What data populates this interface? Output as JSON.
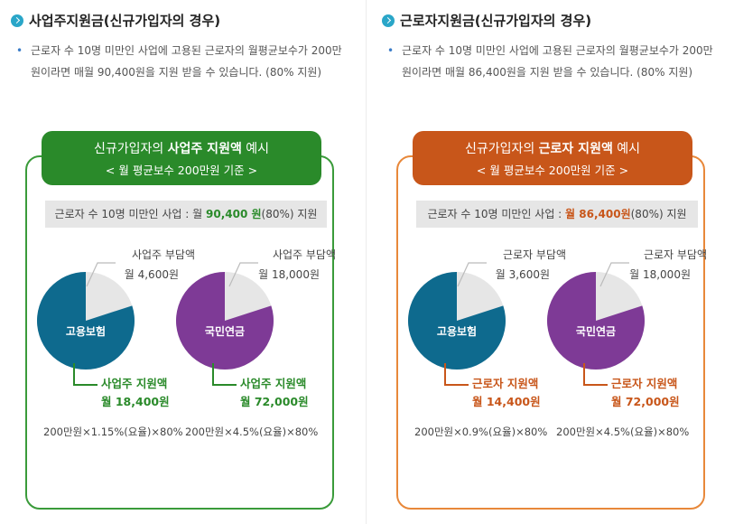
{
  "left": {
    "title": "사업주지원금(신규가입자의 경우)",
    "desc": "근로자 수 10명 미만인 사업에 고용된 근로자의 월평균보수가 200만원이라면 매월 90,400원을 지원 받을 수 있습니다. (80% 지원)",
    "badge_line1_pre": "신규가입자의 ",
    "badge_line1_bold": "사업주 지원액",
    "badge_line1_post": " 예시",
    "badge_line2": "< 월 평균보수 200만원 기준 >",
    "summary_pre": "근로자 수 10명 미만인 사업 : 월 ",
    "summary_amount": "90,400 원",
    "summary_post": "(80%) 지원",
    "pie1": {
      "name": "고용보험",
      "share_label": "사업주 부담액",
      "share_value": "월 4,600원",
      "support_label": "사업주 지원액",
      "support_value": "월 18,400원",
      "formula": "200만원×1.15%(요율)×80%",
      "support_fraction": 0.8
    },
    "pie2": {
      "name": "국민연금",
      "share_label": "사업주 부담액",
      "share_value": "월 18,000원",
      "support_label": "사업주 지원액",
      "support_value": "월 72,000원",
      "formula": "200만원×4.5%(요율)×80%",
      "support_fraction": 0.8
    }
  },
  "right": {
    "title": "근로자지원금(신규가입자의 경우)",
    "desc": "근로자 수 10명 미만인 사업에 고용된 근로자의 월평균보수가 200만원이라면 매월 86,400원을 지원 받을 수 있습니다. (80% 지원)",
    "badge_line1_pre": "신규가입자의 ",
    "badge_line1_bold": "근로자 지원액",
    "badge_line1_post": " 예시",
    "badge_line2": "< 월 평균보수 200만원 기준 >",
    "summary_pre": "근로자 수 10명 미만인 사업 : ",
    "summary_amount": "월 86,400원",
    "summary_post": "(80%) 지원",
    "pie1": {
      "name": "고용보험",
      "share_label": "근로자 부담액",
      "share_value": "월 3,600원",
      "support_label": "근로자 지원액",
      "support_value": "월 14,400원",
      "formula": "200만원×0.9%(요율)×80%",
      "support_fraction": 0.8
    },
    "pie2": {
      "name": "국민연금",
      "share_label": "근로자 부담액",
      "share_value": "월 18,000원",
      "support_label": "근로자 지원액",
      "support_value": "월 72,000원",
      "formula": "200만원×4.5%(요율)×80%",
      "support_fraction": 0.8
    }
  },
  "colors": {
    "employment_insurance": "#0e6a8e",
    "national_pension": "#7e3a96",
    "burden_slice": "#e6e6e6",
    "left_accent": "#2a8a2a",
    "right_accent": "#c8561a"
  }
}
